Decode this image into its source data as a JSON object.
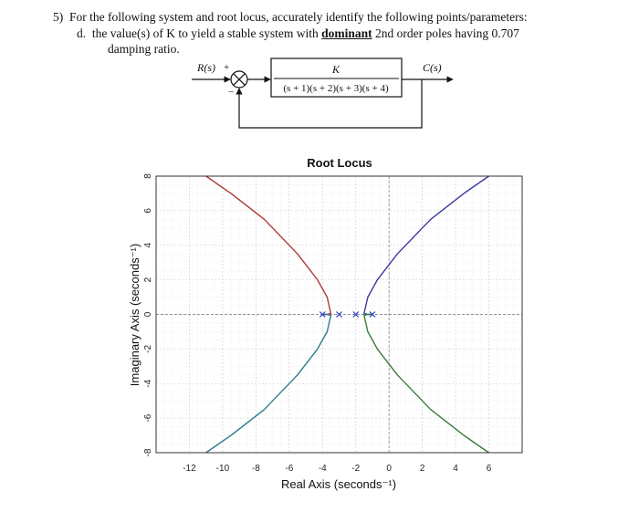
{
  "question": {
    "number": "5)",
    "text": "For the following system and root locus, accurately identify the following points/parameters:",
    "part_label": "d.",
    "part_text_before": "the value(s) of K to yield a stable system with",
    "part_emphasis": "dominant",
    "part_text_after": "2nd order poles having 0.707",
    "part_text_line2": "damping ratio."
  },
  "block_diagram": {
    "input_label": "R(s)",
    "plus_sign": "+",
    "minus_sign": "−",
    "numerator": "K",
    "denominator": "(s + 1)(s + 2)(s + 3)(s + 4)",
    "output_label": "C(s)"
  },
  "chart_data": {
    "type": "line",
    "title": "Root Locus",
    "xlabel": "Real Axis (seconds⁻¹)",
    "ylabel": "Imaginary Axis (seconds⁻¹)",
    "xlim": [
      -14,
      8
    ],
    "ylim": [
      -8,
      8
    ],
    "xticks": [
      "-12",
      "-10",
      "-8",
      "-6",
      "-4",
      "-2",
      "0",
      "2",
      "4",
      "6"
    ],
    "yticks": [
      "8",
      "6",
      "4",
      "2",
      "0",
      "-2",
      "-4",
      "-6",
      "-8"
    ],
    "grid": true,
    "poles": [
      -1,
      -2,
      -3,
      -4
    ],
    "series": [
      {
        "color": "#b03a3a",
        "x": [
          -4,
          -3.75,
          -3.5,
          -3.72,
          -4.3,
          -5.5,
          -7.5,
          -9.5,
          -11.0
        ],
        "y": [
          0,
          0,
          0.05,
          1.0,
          2.0,
          3.5,
          5.5,
          7.0,
          8.0
        ]
      },
      {
        "color": "#2e7c8c",
        "x": [
          -4,
          -3.75,
          -3.5,
          -3.72,
          -4.3,
          -5.5,
          -7.5,
          -9.5,
          -11.0
        ],
        "y": [
          0,
          0,
          -0.05,
          -1.0,
          -2.0,
          -3.5,
          -5.5,
          -7.0,
          -8.0
        ]
      },
      {
        "color": "#3a3aa0",
        "x": [
          -1,
          -1.25,
          -1.5,
          -1.28,
          -0.7,
          0.5,
          2.5,
          4.5,
          6.0
        ],
        "y": [
          0,
          0,
          0.05,
          1.0,
          2.0,
          3.5,
          5.5,
          7.0,
          8.0
        ]
      },
      {
        "color": "#3a7c3a",
        "x": [
          -1,
          -1.25,
          -1.5,
          -1.28,
          -0.7,
          0.5,
          2.5,
          4.5,
          6.0
        ],
        "y": [
          0,
          0,
          -0.05,
          -1.0,
          -2.0,
          -3.5,
          -5.5,
          -7.0,
          -8.0
        ]
      }
    ]
  }
}
